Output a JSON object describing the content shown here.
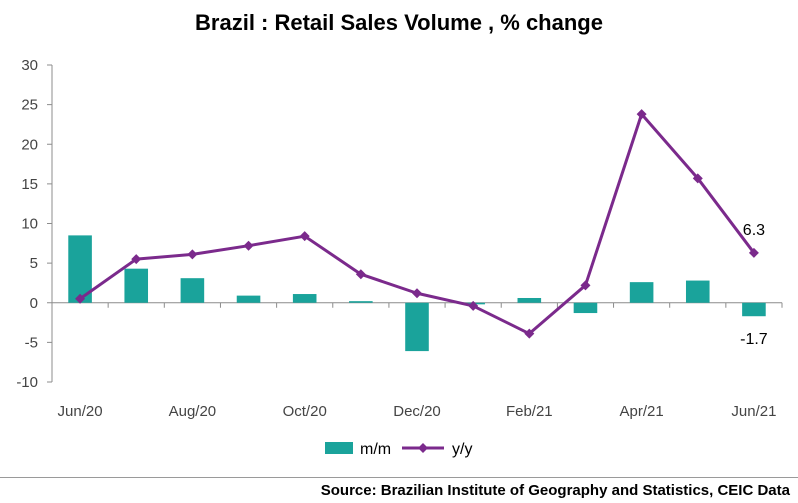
{
  "chart_data": {
    "type": "bar+line",
    "title": "Brazil : Retail Sales Volume  , % change",
    "categories": [
      "Jun/20",
      "Jul/20",
      "Aug/20",
      "Sep/20",
      "Oct/20",
      "Nov/20",
      "Dec/20",
      "Jan/21",
      "Feb/21",
      "Mar/21",
      "Apr/21",
      "May/21",
      "Jun/21"
    ],
    "x_tick_labels": [
      "Jun/20",
      "Aug/20",
      "Oct/20",
      "Dec/20",
      "Feb/21",
      "Apr/21",
      "Jun/21"
    ],
    "series": [
      {
        "name": "m/m",
        "type": "bar",
        "color": "#1aa39b",
        "values": [
          8.5,
          4.3,
          3.1,
          0.9,
          1.1,
          0.2,
          -6.1,
          -0.2,
          0.6,
          -1.3,
          2.6,
          2.8,
          -1.7
        ]
      },
      {
        "name": "y/y",
        "type": "line",
        "color": "#7b2a8c",
        "values": [
          0.5,
          5.5,
          6.1,
          7.2,
          8.4,
          3.6,
          1.2,
          -0.4,
          -3.9,
          2.2,
          23.8,
          15.7,
          6.3
        ]
      }
    ],
    "ylim": [
      -10,
      30
    ],
    "y_ticks": [
      "-10",
      "-5",
      "0",
      "5",
      "10",
      "15",
      "20",
      "25",
      "30"
    ],
    "annotations": [
      {
        "series": "y/y",
        "category": "Jun/21",
        "text": "6.3"
      },
      {
        "series": "m/m",
        "category": "Jun/21",
        "text": "-1.7"
      }
    ],
    "legend": {
      "position": "bottom",
      "items": [
        "m/m",
        "y/y"
      ]
    },
    "grid": false
  },
  "source_text": "Source: Brazilian Institute of Geography and Statistics, CEIC Data"
}
